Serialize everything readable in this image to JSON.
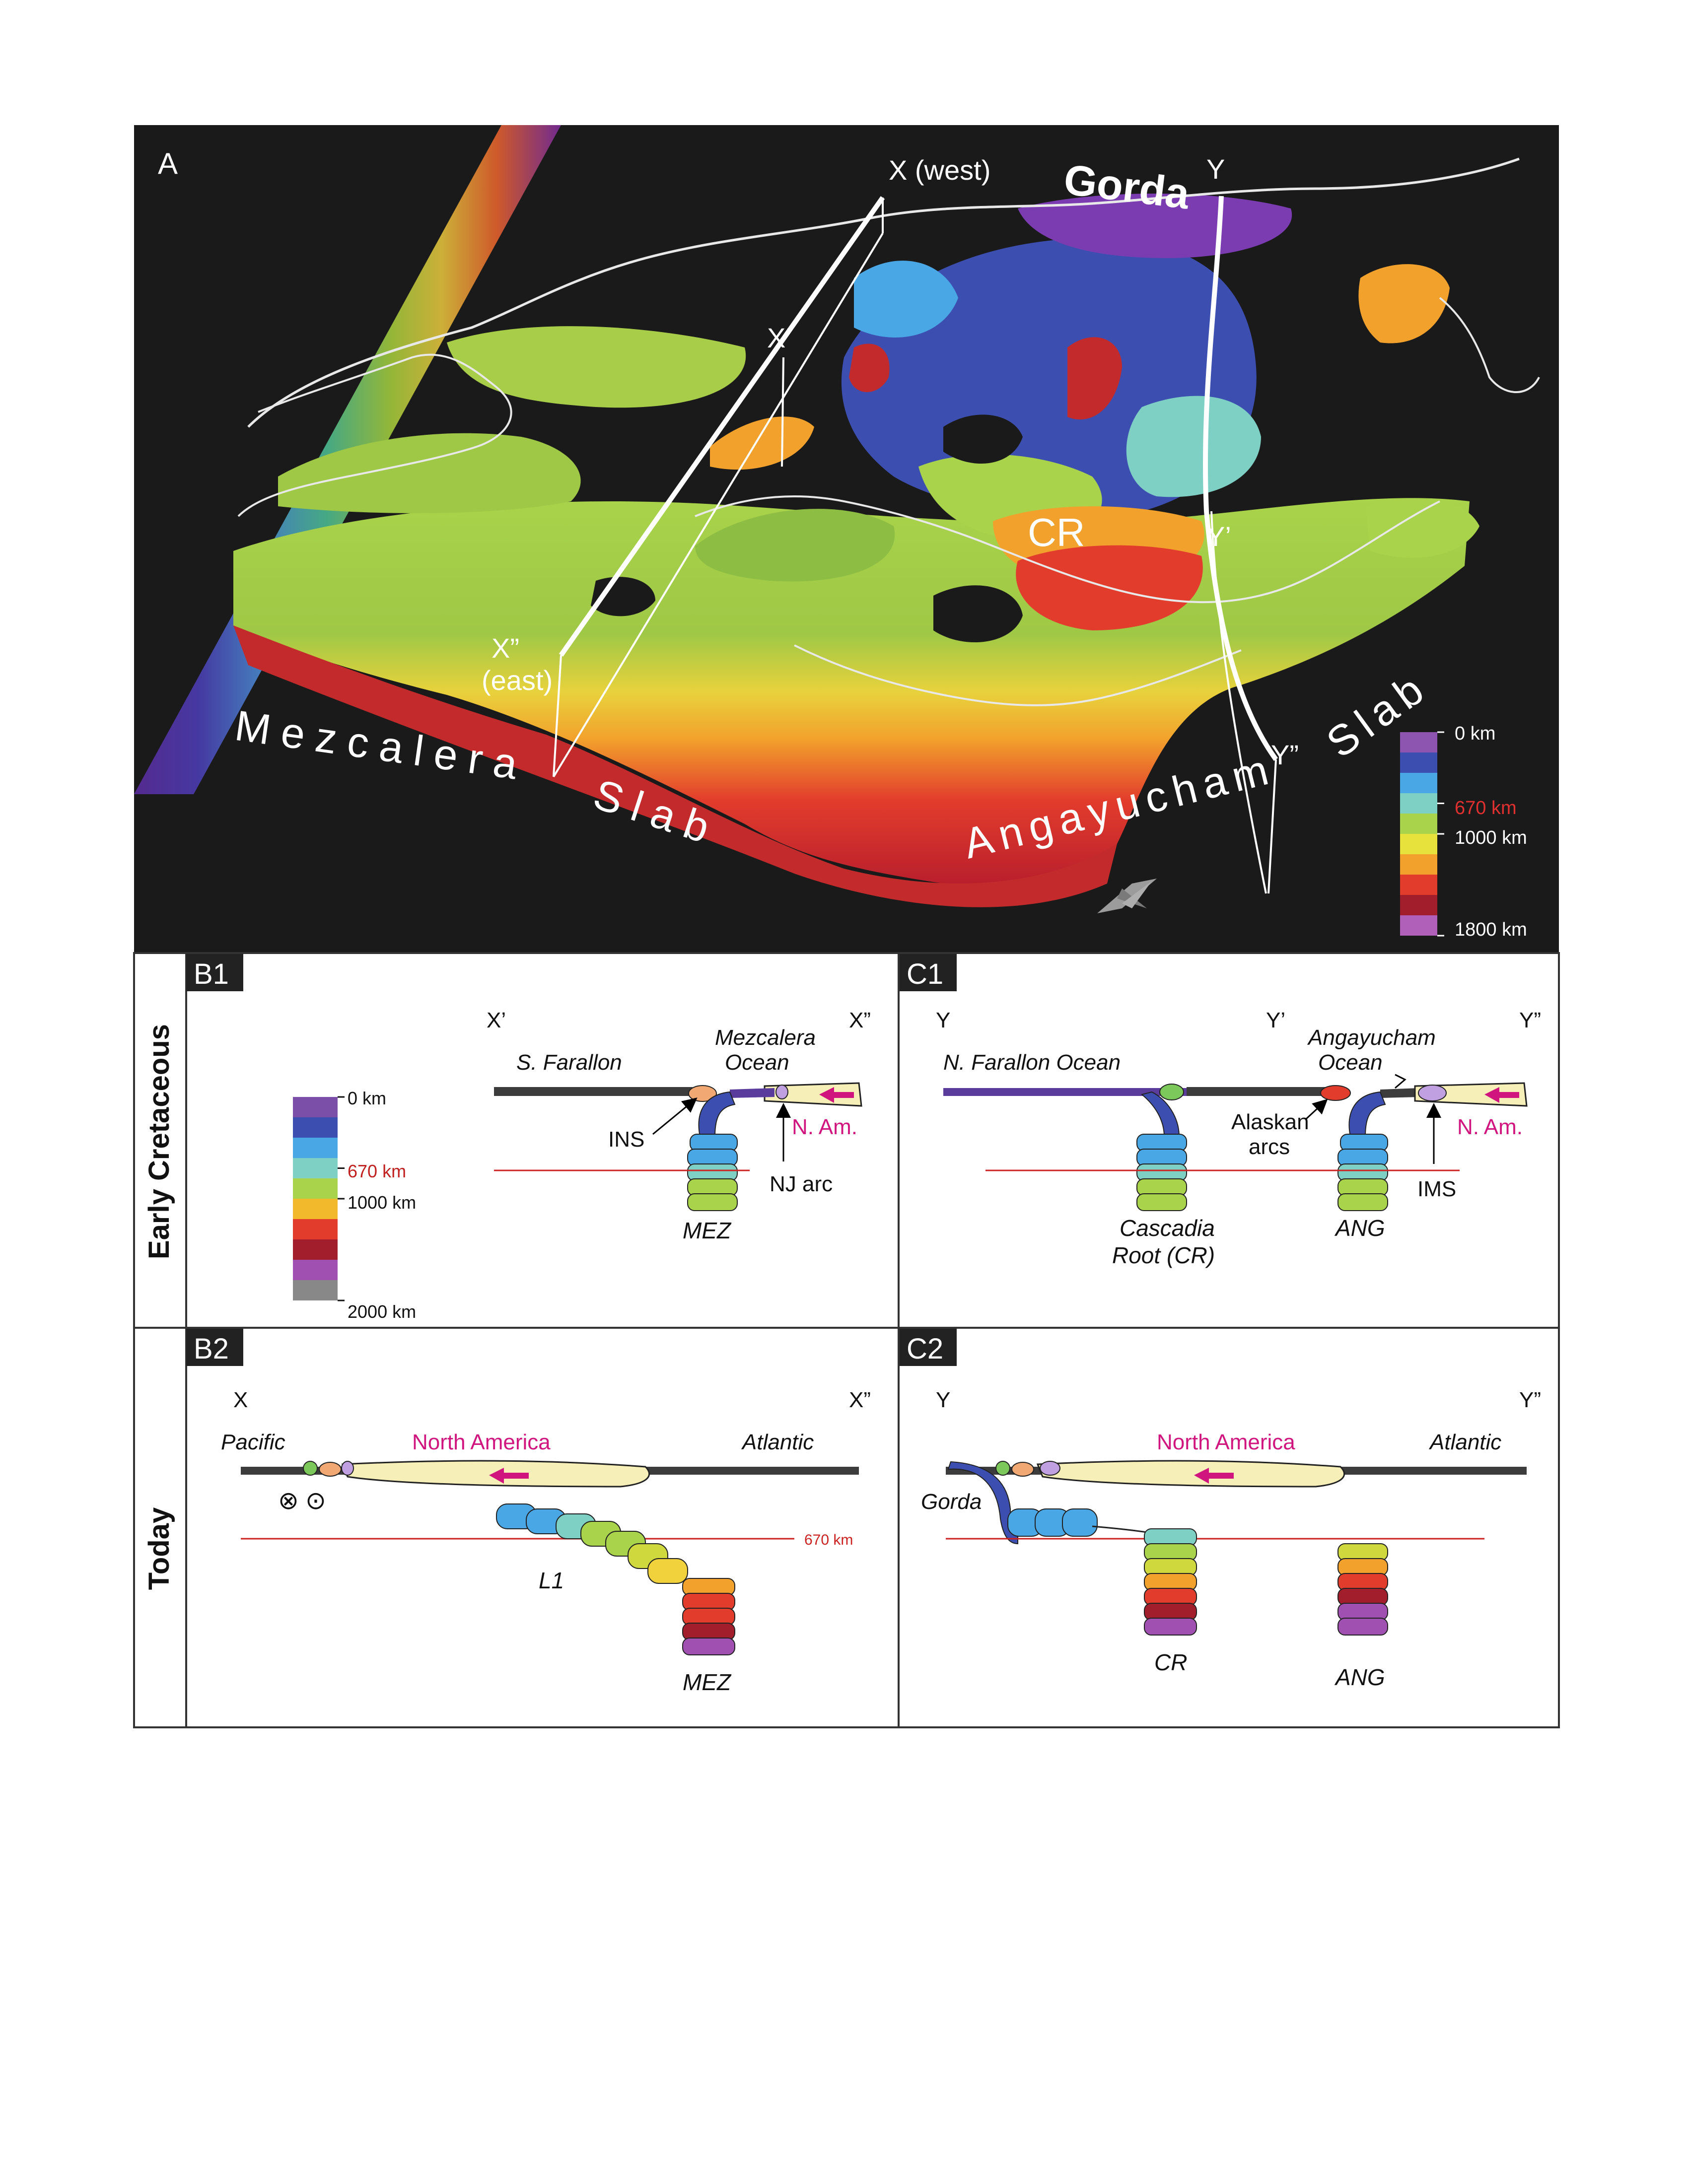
{
  "panelA": {
    "letter": "A",
    "labels": {
      "x_west": "X (west)",
      "x_prime": "X’",
      "x_dprime": "X”",
      "east": "(east)",
      "y": "Y",
      "y_prime": "Y’",
      "y_dprime": "Y”",
      "gorda": "Gorda",
      "cr": "CR",
      "mezcalera": "Mezcalera",
      "slab_left": "Slab",
      "angayucham": "Angayucham",
      "slab_right": "Slab"
    },
    "legend": [
      {
        "label": "0 km",
        "color": "#8e55b0"
      },
      {
        "label": "",
        "color": "#3c4fb0"
      },
      {
        "label": "",
        "color": "#4aa7e6"
      },
      {
        "label": "670 km",
        "color": "#7fd0c4",
        "red": true
      },
      {
        "label": "",
        "color": "#a8d34a"
      },
      {
        "label": "1000 km",
        "color": "#e8e23c"
      },
      {
        "label": "",
        "color": "#f2a22c"
      },
      {
        "label": "",
        "color": "#e23c2c"
      },
      {
        "label": "",
        "color": "#a21e2c"
      },
      {
        "label": "1800 km",
        "color": "#b060b8"
      }
    ]
  },
  "row_labels": {
    "early": "Early Cretaceous",
    "today": "Today"
  },
  "panelB1": {
    "letter": "B1",
    "x_prime": "X’",
    "x_dprime": "X”",
    "s_farallon": "S. Farallon",
    "mezcalera1": "Mezcalera",
    "mezcalera2": "Ocean",
    "ins": "INS",
    "n_am": "N. Am.",
    "nj_arc": "NJ arc",
    "mez": "MEZ",
    "legend": [
      {
        "label": "0 km",
        "color": "#7b4fa8"
      },
      {
        "label": "",
        "color": "#3c4fb0"
      },
      {
        "label": "",
        "color": "#4aa7e6"
      },
      {
        "label": "670 km",
        "color": "#7fd0c4",
        "red": true
      },
      {
        "label": "",
        "color": "#a8d34a"
      },
      {
        "label": "1000 km",
        "color": "#f2b92c"
      },
      {
        "label": "",
        "color": "#e23c2c"
      },
      {
        "label": "",
        "color": "#a21e2c"
      },
      {
        "label": "",
        "color": "#a050b0"
      },
      {
        "label": "2000 km",
        "color": "#888888"
      }
    ]
  },
  "panelC1": {
    "letter": "C1",
    "y": "Y",
    "y_prime": "Y’",
    "y_dprime": "Y”",
    "n_farallon": "N. Farallon Ocean",
    "angayucham1": "Angayucham",
    "angayucham2": "Ocean",
    "alaskan1": "Alaskan",
    "alaskan2": "arcs",
    "n_am": "N. Am.",
    "ims": "IMS",
    "cascadia1": "Cascadia",
    "cascadia2": "Root (CR)",
    "ang": "ANG"
  },
  "panelB2": {
    "letter": "B2",
    "x": "X",
    "x_dprime": "X”",
    "pacific": "Pacific",
    "north_america": "North America",
    "atlantic": "Atlantic",
    "km670": "670 km",
    "l1": "L1",
    "mez": "MEZ",
    "sym_in": "⊗",
    "sym_out": "⊙"
  },
  "panelC2": {
    "letter": "C2",
    "y": "Y",
    "y_dprime": "Y”",
    "north_america": "North America",
    "atlantic": "Atlantic",
    "gorda": "Gorda",
    "cr": "CR",
    "ang": "ANG"
  },
  "colors": {
    "slab_purple": "#5a3c9c",
    "slab_blue": "#3c4fb0",
    "slab_cyan": "#4aa7e6",
    "slab_teal": "#7fd0c4",
    "slab_green": "#a8d34a",
    "slab_yellow": "#e8e23c",
    "slab_orange": "#f2a22c",
    "slab_red": "#e23c2c",
    "slab_dark_red": "#a21e2c",
    "north_america": "#f6efb8",
    "magenta": "#d0167e",
    "ref_line": "#cc2222"
  }
}
